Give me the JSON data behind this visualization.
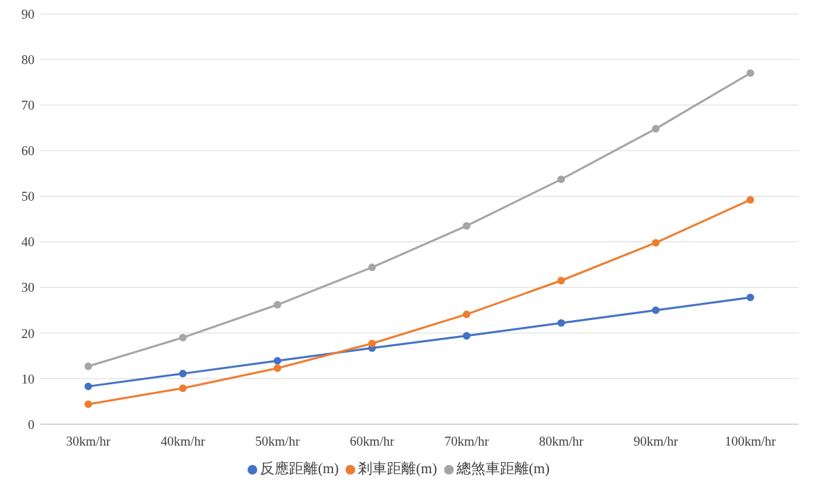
{
  "chart_data": {
    "type": "line",
    "categories": [
      "30km/hr",
      "40km/hr",
      "50km/hr",
      "60km/hr",
      "70km/hr",
      "80km/hr",
      "90km/hr",
      "100km/hr"
    ],
    "series": [
      {
        "name": "反應距離(m)",
        "color": "#4472c4",
        "values": [
          8.3,
          11.1,
          13.9,
          16.7,
          19.4,
          22.2,
          25.0,
          27.8
        ]
      },
      {
        "name": "剎車距離(m)",
        "color": "#ed7d31",
        "values": [
          4.4,
          7.9,
          12.3,
          17.7,
          24.1,
          31.5,
          39.8,
          49.2
        ]
      },
      {
        "name": "總煞車距離(m)",
        "color": "#a5a5a5",
        "values": [
          12.7,
          19.0,
          26.2,
          34.4,
          43.5,
          53.7,
          64.8,
          77.0
        ]
      }
    ],
    "ylim": [
      0,
      90
    ],
    "yticks": [
      0,
      10,
      20,
      30,
      40,
      50,
      60,
      70,
      80,
      90
    ],
    "grid": "y",
    "legend": "bottom",
    "marker": "circle",
    "line_style": "solid"
  }
}
